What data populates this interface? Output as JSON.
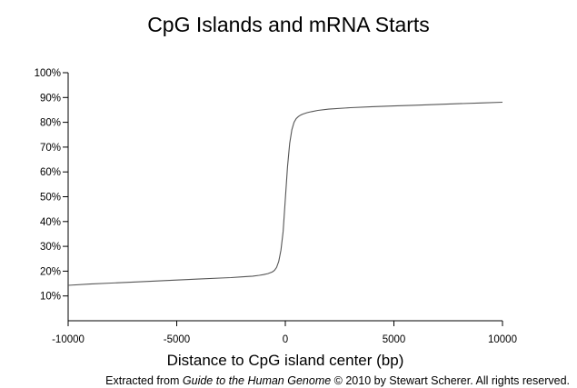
{
  "chart_data": {
    "type": "line",
    "title": "CpG Islands and mRNA Starts",
    "xlabel": "Distance to CpG island center (bp)",
    "ylabel": "",
    "xlim": [
      -10000,
      10000
    ],
    "ylim": [
      0,
      100
    ],
    "x_ticks": [
      -10000,
      -5000,
      0,
      5000,
      10000
    ],
    "x_tick_labels": [
      "-10000",
      "-5000",
      "0",
      "5000",
      "10000"
    ],
    "y_ticks": [
      10,
      20,
      30,
      40,
      50,
      60,
      70,
      80,
      90,
      100
    ],
    "y_tick_labels": [
      "10%",
      "20%",
      "30%",
      "40%",
      "50%",
      "60%",
      "70%",
      "80%",
      "90%",
      "100%"
    ],
    "grid": false,
    "legend": "none",
    "line_color": "#555555",
    "series": [
      {
        "x": [
          -10000,
          -9000,
          -8000,
          -7000,
          -6000,
          -5000,
          -4000,
          -3000,
          -2500,
          -2000,
          -1500,
          -1200,
          -1000,
          -800,
          -600,
          -500,
          -400,
          -300,
          -200,
          -100,
          0,
          100,
          200,
          300,
          400,
          500,
          600,
          700,
          800,
          1000,
          1200,
          1500,
          2000,
          3000,
          4000,
          5000,
          6000,
          7000,
          8000,
          9000,
          10000
        ],
        "values": [
          14.3,
          14.8,
          15.2,
          15.6,
          16.0,
          16.4,
          16.8,
          17.2,
          17.4,
          17.7,
          18.0,
          18.3,
          18.6,
          19.0,
          19.7,
          20.3,
          21.5,
          24.0,
          28.5,
          36.0,
          49.0,
          62.0,
          71.5,
          77.0,
          80.0,
          81.5,
          82.3,
          82.9,
          83.3,
          83.9,
          84.3,
          84.8,
          85.3,
          85.9,
          86.3,
          86.6,
          86.9,
          87.2,
          87.5,
          87.8,
          88.1
        ]
      }
    ]
  },
  "credit": {
    "prefix": "Extracted from ",
    "book": "Guide to the Human Genome",
    "suffix": " © 2010 by Stewart Scherer.  All rights reserved."
  }
}
